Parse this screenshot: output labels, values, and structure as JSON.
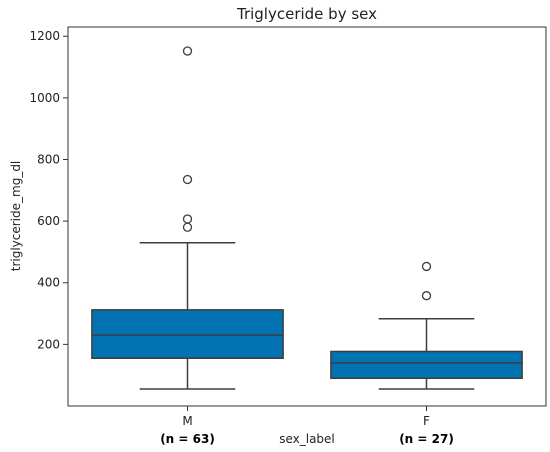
{
  "chart_data": {
    "type": "box",
    "title": "Triglyceride by sex",
    "xlabel": "sex_label",
    "ylabel": "triglyceride_mg_dl",
    "categories": [
      "M",
      "F"
    ],
    "n_labels": [
      "(n = 63)",
      "(n = 27)"
    ],
    "ylim": [
      0,
      1230
    ],
    "yticks": [
      200,
      400,
      600,
      800,
      1000,
      1200
    ],
    "grid": false,
    "box_color": "#0173B2",
    "boxes": [
      {
        "category": "M",
        "whisker_low": 55,
        "q1": 155,
        "median": 230,
        "q3": 312,
        "whisker_high": 530,
        "outliers": [
          580,
          607,
          735,
          1152
        ]
      },
      {
        "category": "F",
        "whisker_low": 55,
        "q1": 90,
        "median": 140,
        "q3": 177,
        "whisker_high": 283,
        "outliers": [
          358,
          453
        ]
      }
    ]
  }
}
